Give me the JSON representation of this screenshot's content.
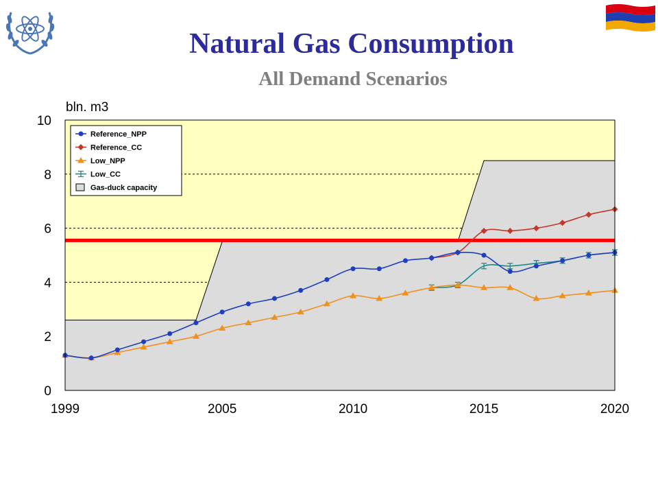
{
  "header": {
    "title": "Natural Gas Consumption",
    "subtitle": "All Demand Scenarios",
    "emblem_icon": "un-laurel-emblem-icon",
    "flag_icon": "armenia-flag-icon",
    "title_color": "#2b2b9a",
    "subtitle_color": "#7f7f7f"
  },
  "chart_data": {
    "type": "line",
    "ylabel": "bln. m3",
    "xlim": [
      1999,
      2020
    ],
    "ylim": [
      0,
      10
    ],
    "x_ticks": [
      "1999",
      "2005",
      "2010",
      "2015",
      "2020"
    ],
    "y_ticks": [
      "0",
      "2",
      "4",
      "6",
      "8",
      "10"
    ],
    "grid": "horizontal dashed",
    "legend_position": "top-left",
    "background_color": "#ffffc0",
    "capacity": {
      "name": "Gas-duck capacity",
      "color": "#dcdcdc",
      "points": [
        [
          1999,
          2.6
        ],
        [
          2004,
          2.6
        ],
        [
          2005,
          5.5
        ],
        [
          2014,
          5.5
        ],
        [
          2015,
          8.5
        ],
        [
          2020,
          8.5
        ]
      ]
    },
    "reference_line": {
      "value": 5.55,
      "color": "#ff0000"
    },
    "series": [
      {
        "name": "Reference_NPP",
        "color": "#1f3fbf",
        "marker": "circle",
        "x": [
          1999,
          2000,
          2001,
          2002,
          2003,
          2004,
          2005,
          2006,
          2007,
          2008,
          2009,
          2010,
          2011,
          2012,
          2013,
          2014,
          2015,
          2016,
          2017,
          2018,
          2019,
          2020
        ],
        "values": [
          1.3,
          1.2,
          1.5,
          1.8,
          2.1,
          2.5,
          2.9,
          3.2,
          3.4,
          3.7,
          4.1,
          4.5,
          4.5,
          4.8,
          4.9,
          5.1,
          5.0,
          4.4,
          4.6,
          4.8,
          5.0,
          5.1
        ]
      },
      {
        "name": "Reference_CC",
        "color": "#c0392b",
        "marker": "diamond",
        "x": [
          2013,
          2014,
          2015,
          2016,
          2017,
          2018,
          2019,
          2020
        ],
        "values": [
          4.9,
          5.1,
          5.9,
          5.9,
          6.0,
          6.2,
          6.5,
          6.7
        ]
      },
      {
        "name": "Low_NPP",
        "color": "#f0901e",
        "marker": "triangle",
        "x": [
          1999,
          2000,
          2001,
          2002,
          2003,
          2004,
          2005,
          2006,
          2007,
          2008,
          2009,
          2010,
          2011,
          2012,
          2013,
          2014,
          2015,
          2016,
          2017,
          2018,
          2019,
          2020
        ],
        "values": [
          1.3,
          1.2,
          1.4,
          1.6,
          1.8,
          2.0,
          2.3,
          2.5,
          2.7,
          2.9,
          3.2,
          3.5,
          3.4,
          3.6,
          3.8,
          3.9,
          3.8,
          3.8,
          3.4,
          3.5,
          3.6,
          3.7
        ]
      },
      {
        "name": "Low_CC",
        "color": "#1a8a8a",
        "marker": "tick",
        "x": [
          2013,
          2014,
          2015,
          2016,
          2017,
          2018,
          2019,
          2020
        ],
        "values": [
          3.8,
          3.9,
          4.6,
          4.6,
          4.7,
          4.8,
          5.0,
          5.1
        ]
      }
    ]
  }
}
